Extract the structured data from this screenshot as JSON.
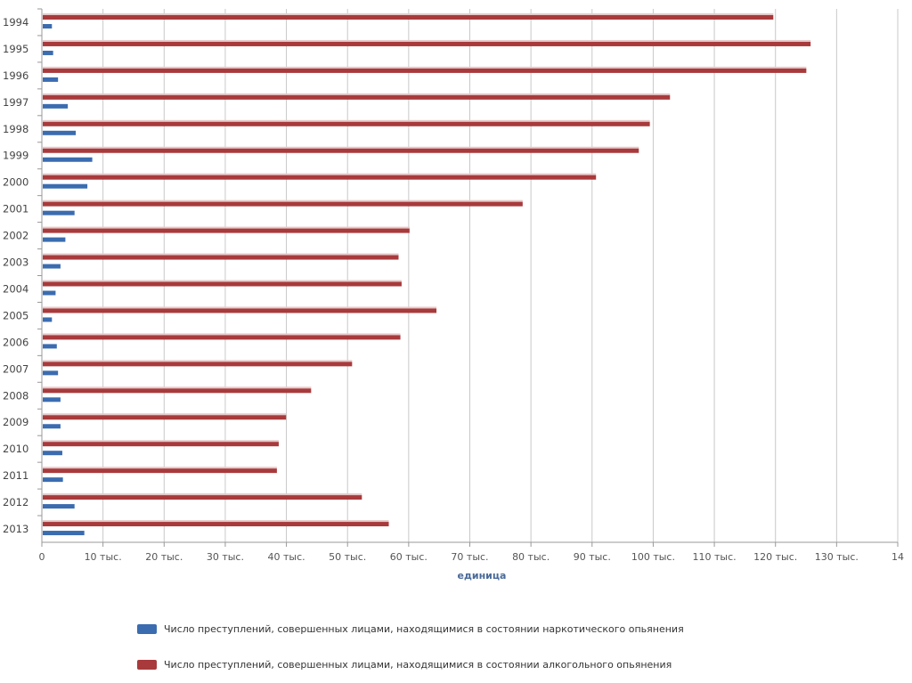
{
  "chart_data": {
    "type": "bar",
    "orientation": "horizontal",
    "categories": [
      "1994",
      "1995",
      "1996",
      "1997",
      "1998",
      "1999",
      "2000",
      "2001",
      "2002",
      "2003",
      "2004",
      "2005",
      "2006",
      "2007",
      "2008",
      "2009",
      "2010",
      "2011",
      "2012",
      "2013"
    ],
    "series": [
      {
        "name": "Число преступлений, совершенных лицами, находящимися в состоянии алкогольного опьянения",
        "color": "#a83a3c",
        "values": [
          119500,
          125600,
          124900,
          102600,
          99300,
          97500,
          90500,
          78500,
          60000,
          58200,
          58700,
          64400,
          58500,
          50600,
          43900,
          39800,
          38600,
          38300,
          52200,
          56600
        ]
      },
      {
        "name": "Число преступлений, совершенных лицами, находящимися в состоянии наркотического опьянения",
        "color": "#3b6cb0",
        "values": [
          1500,
          1700,
          2500,
          4100,
          5400,
          8100,
          7300,
          5200,
          3700,
          2900,
          2100,
          1500,
          2300,
          2500,
          2900,
          2900,
          3200,
          3300,
          5200,
          6800
        ]
      }
    ],
    "xlim": [
      0,
      140000
    ],
    "xticks": [
      "0",
      "10 тыс.",
      "20 тыс.",
      "30 тыс.",
      "40 тыс.",
      "50 тыс.",
      "60 тыс.",
      "70 тыс.",
      "80 тыс.",
      "90 тыс.",
      "100 тыс.",
      "110 тыс.",
      "120 тыс.",
      "130 тыс.",
      "14"
    ],
    "xlabel": "единица",
    "grid": true,
    "legend": [
      {
        "label": "Число преступлений, совершенных лицами, находящимися в состоянии наркотического опьянения",
        "color": "#3b6cb0"
      },
      {
        "label": "Число преступлений, совершенных лицами, находящимися в состоянии алкогольного опьянения",
        "color": "#a83a3c"
      }
    ],
    "legend_position": "bottom"
  }
}
